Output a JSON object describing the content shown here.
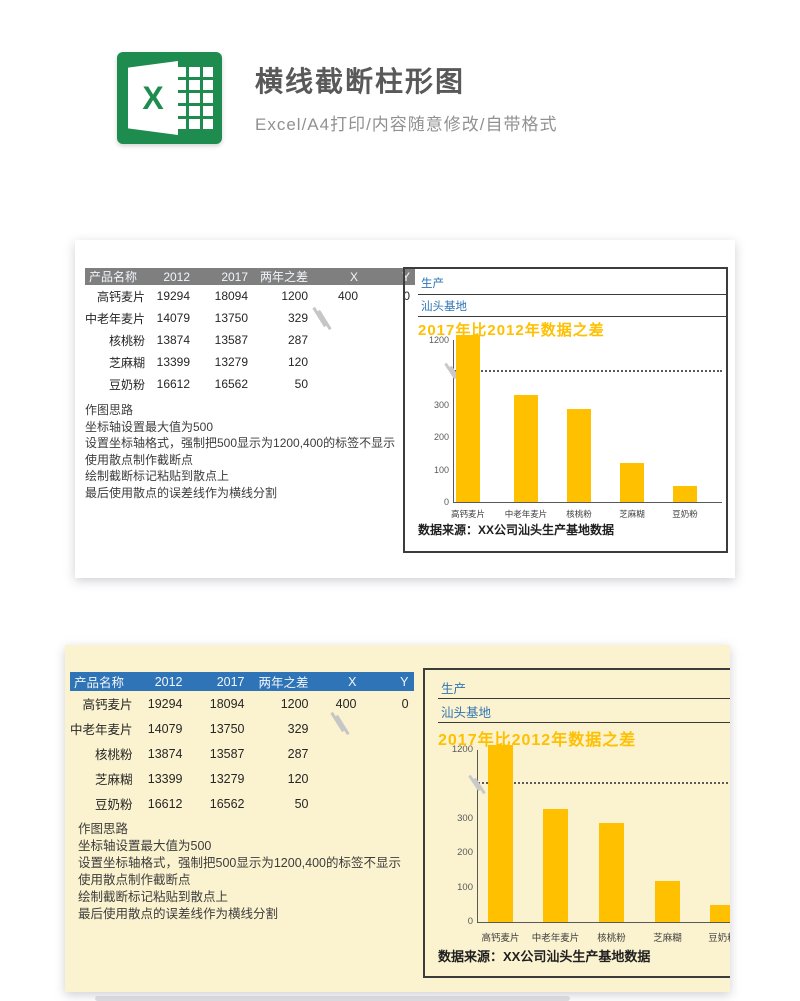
{
  "header": {
    "title": "横线截断柱形图",
    "subtitle": "Excel/A4打印/内容随意修改/自带格式",
    "logo_letter": "X"
  },
  "colors": {
    "excel_green": "#1E8C4E",
    "bar": "#FFC000",
    "table_header_gray": "#7F7F7F",
    "table_header_blue": "#2E74B6",
    "panel_cream": "#FBF2CF",
    "chart_title_blue": "#2E74B6",
    "chart_title_yellow": "#FFC000"
  },
  "table": {
    "headers": [
      "产品名称",
      "2012",
      "2017",
      "两年之差",
      "X",
      "Y"
    ],
    "rows": [
      [
        "高钙麦片",
        "19294",
        "18094",
        "1200",
        "400",
        "0"
      ],
      [
        "中老年麦片",
        "14079",
        "13750",
        "329",
        "",
        ""
      ],
      [
        "核桃粉",
        "13874",
        "13587",
        "287",
        "",
        ""
      ],
      [
        "芝麻糊",
        "13399",
        "13279",
        "120",
        "",
        ""
      ],
      [
        "豆奶粉",
        "16612",
        "16562",
        "50",
        "",
        ""
      ]
    ]
  },
  "notes": [
    "作图思路",
    "坐标轴设置最大值为500",
    "设置坐标轴格式，强制把500显示为1200,400的标签不显示",
    "使用散点制作截断点",
    "绘制截断标记粘贴到散点上",
    "最后使用散点的误差线作为横线分割"
  ],
  "chart_data": {
    "type": "bar",
    "title_lines": [
      "生产",
      "汕头基地"
    ],
    "title": "2017年比2012年数据之差",
    "categories": [
      "高钙麦片",
      "中老年麦片",
      "核桃粉",
      "芝麻糊",
      "豆奶粉"
    ],
    "values": [
      1200,
      329,
      287,
      120,
      50
    ],
    "ylim": [
      0,
      500
    ],
    "yticks": [
      {
        "label": "1200",
        "value": 500
      },
      {
        "label": "300",
        "value": 300
      },
      {
        "label": "200",
        "value": 200
      },
      {
        "label": "100",
        "value": 100
      },
      {
        "label": "0",
        "value": 0
      }
    ],
    "break_line_value": 400,
    "bar_color": "#FFC000",
    "grid": false,
    "legend": false,
    "source": "数据来源：XX公司汕头生产基地数据"
  }
}
